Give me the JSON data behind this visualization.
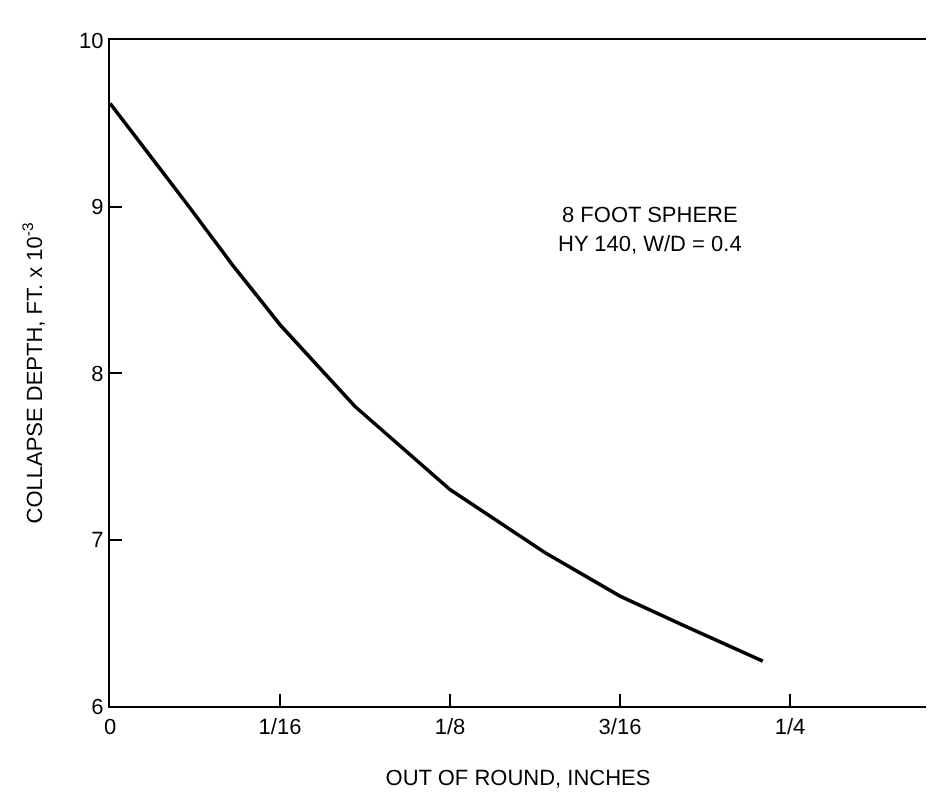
{
  "chart_data": {
    "type": "line",
    "xlabel": "OUT OF ROUND, INCHES",
    "ylabel": "COLLAPSE DEPTH, FT. x 10$^{-3}$",
    "annotations": [
      "8 FOOT SPHERE\nHY 140, W/D = 0.4"
    ],
    "series": [
      {
        "color": "#000000",
        "x": [
          0,
          0.015,
          0.029,
          0.045,
          0.0625,
          0.09,
          0.125,
          0.16,
          0.1875,
          0.21,
          0.24
        ],
        "values": [
          9.62,
          9.3,
          9.0,
          8.65,
          8.29,
          7.8,
          7.3,
          6.92,
          6.66,
          6.49,
          6.27
        ]
      }
    ],
    "xlim": [
      0,
      0.3
    ],
    "ylim": [
      6,
      10
    ],
    "xticks": [
      0,
      {
        "value": 0.0625,
        "label": "1/16"
      },
      {
        "value": 0.125,
        "label": "1/8"
      },
      {
        "value": 0.1875,
        "label": "3/16"
      },
      {
        "value": 0.25,
        "label": "1/4"
      }
    ],
    "yticks": [
      6,
      7,
      8,
      9,
      10
    ],
    "legend": false
  }
}
